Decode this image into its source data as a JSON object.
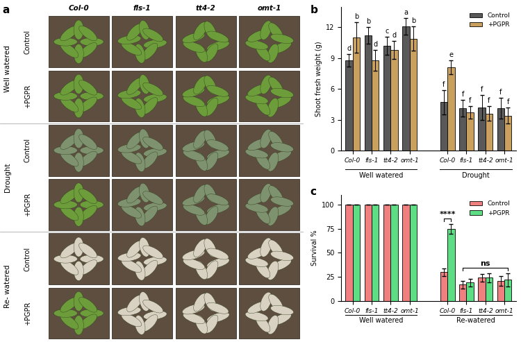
{
  "photo_panel": {
    "panel_label": "a",
    "columns": [
      "Col-0",
      "fls-1",
      "tt4-2",
      "omt-1"
    ],
    "row_groups": [
      {
        "label": "Well watered",
        "rows": [
          "Control",
          "+PGPR"
        ]
      },
      {
        "label": "Drought",
        "rows": [
          "Control",
          "+PGPR"
        ]
      },
      {
        "label": "Re- watered",
        "rows": [
          "Control",
          "+PGPR"
        ]
      }
    ]
  },
  "chart_data": [
    {
      "type": "bar",
      "panel_label": "b",
      "y_label": "Shoot fresh weight (g)",
      "categories": [
        "Col-0",
        "fls-1",
        "tt4-2",
        "omt-1",
        null,
        "Col-0",
        "fls-1",
        "tt4-2",
        "omt-1"
      ],
      "group_labels": [
        "Well watered",
        "Drought"
      ],
      "series": [
        {
          "name": "Control",
          "color": "#595959",
          "values": [
            8.8,
            11.2,
            10.2,
            12.1,
            null,
            4.7,
            4.1,
            4.2,
            4.1
          ],
          "errors": [
            0.6,
            0.8,
            0.9,
            0.8,
            null,
            1.2,
            0.8,
            1.2,
            1.0
          ],
          "letters": [
            "d",
            "b",
            "c",
            "a",
            null,
            "f",
            "f",
            "f",
            "f"
          ]
        },
        {
          "name": "+PGPR",
          "color": "#c9a05e",
          "values": [
            11.0,
            8.8,
            9.8,
            10.9,
            null,
            8.1,
            3.7,
            3.6,
            3.4
          ],
          "errors": [
            1.5,
            1.0,
            0.9,
            1.2,
            null,
            0.7,
            0.6,
            0.7,
            0.8
          ],
          "letters": [
            "b",
            "d",
            "d",
            "b",
            null,
            "e",
            "f",
            "f",
            "f"
          ]
        }
      ],
      "ylim": [
        0,
        14
      ],
      "yticks": [
        0,
        3,
        6,
        9,
        12
      ],
      "grid": false,
      "legend": "upper right"
    },
    {
      "type": "bar",
      "panel_label": "c",
      "y_label": "Survival %",
      "categories": [
        "Col-0",
        "fls-1",
        "tt4-2",
        "omt-1",
        null,
        "Col-0",
        "fls-1",
        "tt4-2",
        "omt-1"
      ],
      "group_labels": [
        "Well watered",
        "Re-watered"
      ],
      "series": [
        {
          "name": "Control",
          "color": "#f08080",
          "values": [
            100,
            100,
            100,
            100,
            null,
            30,
            17,
            24,
            21
          ],
          "errors": [
            0,
            0,
            0,
            0,
            null,
            4,
            4,
            4,
            5
          ]
        },
        {
          "name": "+PGPR",
          "color": "#5ede84",
          "values": [
            100,
            100,
            100,
            100,
            null,
            75,
            19,
            24,
            22
          ],
          "errors": [
            0,
            0,
            0,
            0,
            null,
            5,
            4,
            5,
            7
          ]
        }
      ],
      "annotations": [
        {
          "text": "****",
          "categories": [
            5,
            5
          ]
        },
        {
          "text": "ns",
          "categories": [
            6,
            8
          ]
        }
      ],
      "ylim": [
        0,
        110
      ],
      "yticks": [
        0,
        25,
        50,
        75,
        100
      ],
      "grid": false,
      "legend": "upper right"
    }
  ]
}
